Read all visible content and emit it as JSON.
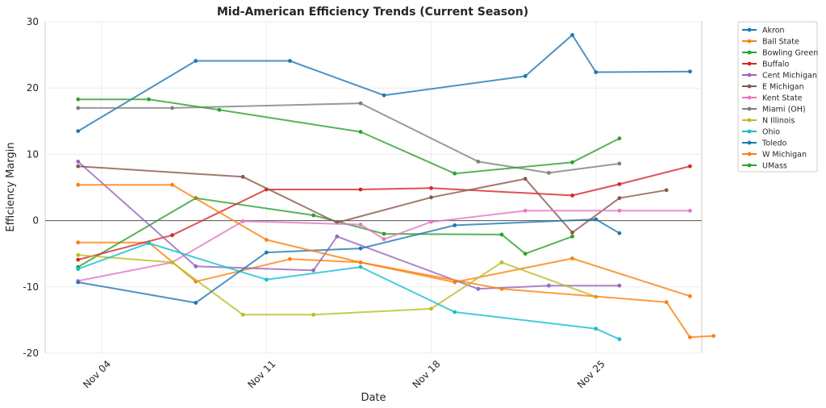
{
  "chart_data": {
    "type": "line",
    "title": "Mid-American Efficiency Trends (Current Season)",
    "xlabel": "Date",
    "ylabel": "Efficiency Margin",
    "x_ticks": [
      "Nov 04",
      "Nov 11",
      "Nov 18",
      "Nov 25"
    ],
    "y_ticks": [
      30,
      20,
      10,
      0,
      -10,
      -20
    ],
    "ylim": [
      -20,
      30
    ],
    "x_range_days_from_nov1": [
      0.6,
      28.5
    ],
    "zero_line": true,
    "grid": true,
    "legend_position": "outside-right-top",
    "series": [
      {
        "name": "Akron",
        "color": "#1f77b4",
        "points": [
          [
            "Nov 03",
            13.5
          ],
          [
            "Nov 08",
            24.1
          ],
          [
            "Nov 12",
            24.1
          ],
          [
            "Nov 16",
            18.9
          ],
          [
            "Nov 22",
            21.8
          ],
          [
            "Nov 24",
            28.0
          ],
          [
            "Nov 25",
            22.4
          ],
          [
            "Nov 29",
            22.5
          ]
        ]
      },
      {
        "name": "Ball State",
        "color": "#ff7f0e",
        "points": [
          [
            "Nov 03",
            -3.3
          ],
          [
            "Nov 06",
            -3.3
          ],
          [
            "Nov 08",
            -9.2
          ],
          [
            "Nov 12",
            -5.8
          ],
          [
            "Nov 15",
            -6.3
          ],
          [
            "Nov 19",
            -9.3
          ],
          [
            "Nov 24",
            -5.7
          ],
          [
            "Nov 29",
            -11.4
          ]
        ]
      },
      {
        "name": "Bowling Green",
        "color": "#2ca02c",
        "points": [
          [
            "Nov 03",
            -7.0
          ],
          [
            "Nov 08",
            3.4
          ],
          [
            "Nov 13",
            0.8
          ],
          [
            "Nov 16",
            -2.0
          ],
          [
            "Nov 21",
            -2.1
          ],
          [
            "Nov 22",
            -5.0
          ],
          [
            "Nov 24",
            -2.4
          ]
        ]
      },
      {
        "name": "Buffalo",
        "color": "#d62728",
        "points": [
          [
            "Nov 03",
            -5.9
          ],
          [
            "Nov 07",
            -2.2
          ],
          [
            "Nov 11",
            4.7
          ],
          [
            "Nov 15",
            4.7
          ],
          [
            "Nov 18",
            4.9
          ],
          [
            "Nov 24",
            3.8
          ],
          [
            "Nov 26",
            5.5
          ],
          [
            "Nov 29",
            8.2
          ]
        ]
      },
      {
        "name": "Cent Michigan",
        "color": "#9467bd",
        "points": [
          [
            "Nov 03",
            8.9
          ],
          [
            "Nov 08",
            -6.9
          ],
          [
            "Nov 13",
            -7.5
          ],
          [
            "Nov 14",
            -2.4
          ],
          [
            "Nov 20",
            -10.3
          ],
          [
            "Nov 23",
            -9.8
          ],
          [
            "Nov 26",
            -9.8
          ]
        ]
      },
      {
        "name": "E Michigan",
        "color": "#8c564b",
        "points": [
          [
            "Nov 03",
            8.2
          ],
          [
            "Nov 10",
            6.6
          ],
          [
            "Nov 14",
            -0.3
          ],
          [
            "Nov 18",
            3.5
          ],
          [
            "Nov 22",
            6.3
          ],
          [
            "Nov 24",
            -1.8
          ],
          [
            "Nov 26",
            3.4
          ],
          [
            "Nov 28",
            4.6
          ]
        ]
      },
      {
        "name": "Kent State",
        "color": "#e377c2",
        "points": [
          [
            "Nov 03",
            -9.1
          ],
          [
            "Nov 07",
            -6.3
          ],
          [
            "Nov 10",
            -0.1
          ],
          [
            "Nov 15",
            -0.6
          ],
          [
            "Nov 16",
            -2.8
          ],
          [
            "Nov 18",
            -0.2
          ],
          [
            "Nov 22",
            1.5
          ],
          [
            "Nov 26",
            1.5
          ],
          [
            "Nov 29",
            1.5
          ]
        ]
      },
      {
        "name": "Miami (OH)",
        "color": "#7f7f7f",
        "points": [
          [
            "Nov 03",
            17.0
          ],
          [
            "Nov 07",
            17.0
          ],
          [
            "Nov 15",
            17.7
          ],
          [
            "Nov 20",
            8.9
          ],
          [
            "Nov 23",
            7.2
          ],
          [
            "Nov 26",
            8.6
          ]
        ]
      },
      {
        "name": "N Illinois",
        "color": "#bcbd22",
        "points": [
          [
            "Nov 03",
            -5.2
          ],
          [
            "Nov 07",
            -6.3
          ],
          [
            "Nov 10",
            -14.2
          ],
          [
            "Nov 13",
            -14.2
          ],
          [
            "Nov 18",
            -13.3
          ],
          [
            "Nov 21",
            -6.3
          ],
          [
            "Nov 25",
            -11.5
          ]
        ]
      },
      {
        "name": "Ohio",
        "color": "#17becf",
        "points": [
          [
            "Nov 03",
            -7.3
          ],
          [
            "Nov 06",
            -3.4
          ],
          [
            "Nov 11",
            -8.9
          ],
          [
            "Nov 15",
            -7.0
          ],
          [
            "Nov 19",
            -13.8
          ],
          [
            "Nov 25",
            -16.3
          ],
          [
            "Nov 26",
            -17.9
          ]
        ]
      },
      {
        "name": "Toledo",
        "color": "#1f77b4",
        "points": [
          [
            "Nov 03",
            -9.3
          ],
          [
            "Nov 08",
            -12.4
          ],
          [
            "Nov 11",
            -4.8
          ],
          [
            "Nov 15",
            -4.2
          ],
          [
            "Nov 19",
            -0.7
          ],
          [
            "Nov 25",
            0.2
          ],
          [
            "Nov 26",
            -1.9
          ]
        ]
      },
      {
        "name": "W Michigan",
        "color": "#ff7f0e",
        "points": [
          [
            "Nov 03",
            5.4
          ],
          [
            "Nov 07",
            5.4
          ],
          [
            "Nov 11",
            -2.9
          ],
          [
            "Nov 15",
            -6.3
          ],
          [
            "Nov 21",
            -10.3
          ],
          [
            "Nov 28",
            -12.3
          ],
          [
            "Nov 29",
            -17.6
          ],
          [
            "Nov 30",
            -17.4
          ]
        ]
      },
      {
        "name": "UMass",
        "color": "#2ca02c",
        "points": [
          [
            "Nov 03",
            18.3
          ],
          [
            "Nov 06",
            18.3
          ],
          [
            "Nov 09",
            16.7
          ],
          [
            "Nov 15",
            13.4
          ],
          [
            "Nov 19",
            7.1
          ],
          [
            "Nov 24",
            8.8
          ],
          [
            "Nov 26",
            12.4
          ]
        ]
      }
    ]
  }
}
